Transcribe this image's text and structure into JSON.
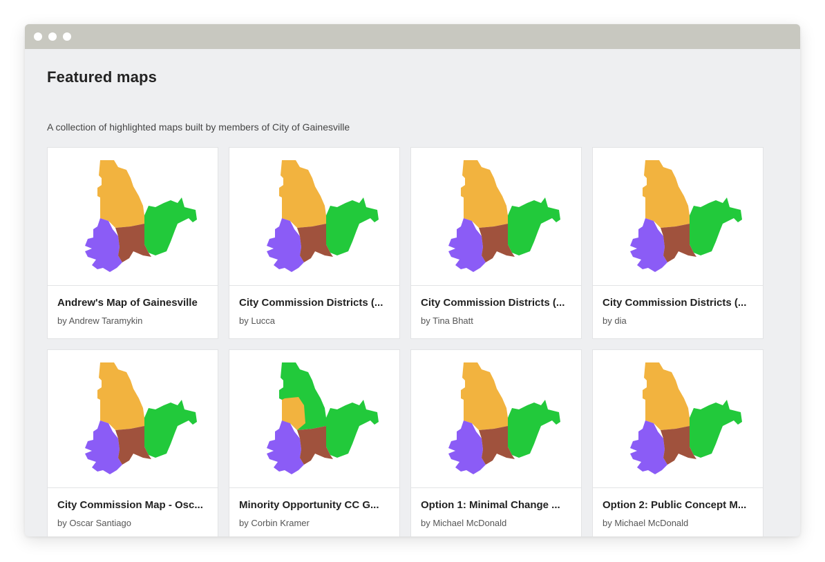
{
  "page": {
    "title": "Featured maps",
    "subtitle": "A collection of highlighted maps built by members of City of Gainesville"
  },
  "colors": {
    "orange": "#f2b33f",
    "green": "#22c93b",
    "purple": "#8b5cf6",
    "brown": "#a0523d"
  },
  "maps": [
    {
      "title": "Andrew's Map of Gainesville",
      "author": "by Andrew Taramykin",
      "variant": 1
    },
    {
      "title": "City Commission Districts (...",
      "author": "by Lucca",
      "variant": 2
    },
    {
      "title": "City Commission Districts (...",
      "author": "by Tina Bhatt",
      "variant": 3
    },
    {
      "title": "City Commission Districts (...",
      "author": "by dia",
      "variant": 4
    },
    {
      "title": "City Commission Map - Osc...",
      "author": "by Oscar Santiago",
      "variant": 5
    },
    {
      "title": "Minority Opportunity CC G...",
      "author": "by Corbin Kramer",
      "variant": 6
    },
    {
      "title": "Option 1: Minimal Change ...",
      "author": "by Michael McDonald",
      "variant": 7
    },
    {
      "title": "Option 2: Public Concept M...",
      "author": "by Michael McDonald",
      "variant": 8
    }
  ]
}
